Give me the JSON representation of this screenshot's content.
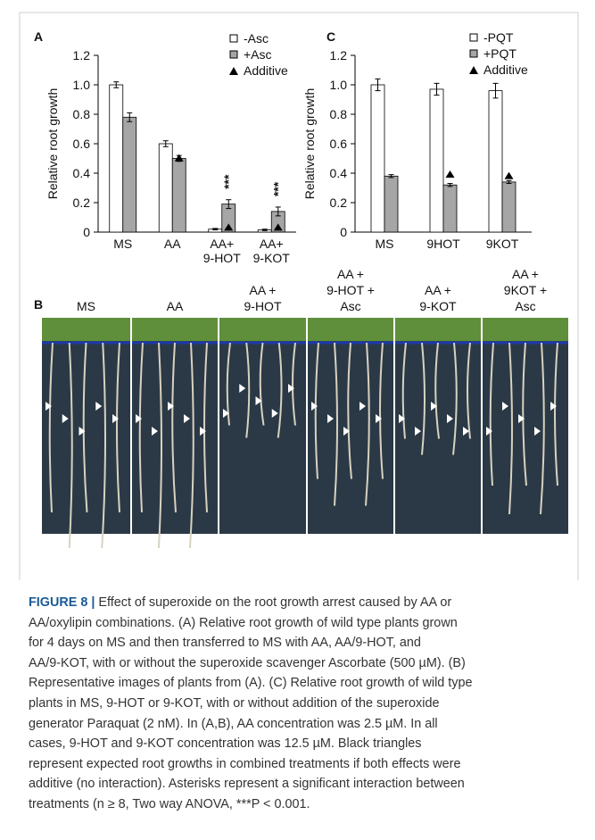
{
  "chart_data": [
    {
      "type": "bar",
      "panel": "A",
      "ylabel": "Relative root growth",
      "categories": [
        [
          "MS"
        ],
        [
          "AA"
        ],
        [
          "AA+",
          "9-HOT"
        ],
        [
          "AA+",
          "9-KOT"
        ]
      ],
      "series": [
        {
          "name": "-Asc",
          "color": "#ffffff",
          "values": [
            1.0,
            0.6,
            0.02,
            0.015
          ],
          "errors": [
            0.02,
            0.02,
            0.005,
            0.005
          ]
        },
        {
          "name": "+Asc",
          "color": "#a6a6a6",
          "values": [
            0.78,
            0.5,
            0.19,
            0.14
          ],
          "errors": [
            0.03,
            0.02,
            0.03,
            0.03
          ]
        },
        {
          "name": "Additive",
          "color": "#000000",
          "marker": "triangle",
          "values": [
            null,
            0.48,
            0.01,
            0.01
          ]
        }
      ],
      "annotations": [
        null,
        null,
        "***",
        "***"
      ],
      "ylim": [
        0,
        1.2
      ],
      "yticks": [
        0,
        0.2,
        0.4,
        0.6,
        0.8,
        {
          "value": 1,
          "label": "1.0"
        },
        1.2
      ]
    },
    {
      "type": "bar",
      "panel": "C",
      "ylabel": "Relative root growth",
      "categories": [
        [
          "MS"
        ],
        [
          "9HOT"
        ],
        [
          "9KOT"
        ]
      ],
      "series": [
        {
          "name": "-PQT",
          "color": "#ffffff",
          "values": [
            1.0,
            0.97,
            0.96
          ],
          "errors": [
            0.04,
            0.04,
            0.05
          ]
        },
        {
          "name": "+PQT",
          "color": "#a6a6a6",
          "values": [
            0.38,
            0.32,
            0.34
          ],
          "errors": [
            0.01,
            0.01,
            0.01
          ]
        },
        {
          "name": "Additive",
          "color": "#000000",
          "marker": "triangle",
          "values": [
            null,
            0.37,
            0.36
          ]
        }
      ],
      "ylim": [
        0,
        1.2
      ],
      "yticks": [
        0,
        0.2,
        0.4,
        0.6,
        0.8,
        {
          "value": 1,
          "label": "1.0"
        },
        1.2
      ]
    }
  ],
  "panel_b": {
    "panel": "B",
    "columns": [
      [
        "MS"
      ],
      [
        "AA"
      ],
      [
        "AA +",
        "9-HOT"
      ],
      [
        "AA +",
        "9-HOT +",
        "Asc"
      ],
      [
        "AA +",
        "9-KOT"
      ],
      [
        "AA +",
        "9KOT +",
        "Asc"
      ]
    ]
  },
  "caption": {
    "label": "FIGURE 8 |",
    "lines": [
      "Effect of superoxide on the root growth arrest caused by AA or",
      "AA/oxylipin combinations. (A) Relative root growth of wild type plants grown",
      "for 4 days on MS and then transferred to MS with AA, AA/9-HOT, and",
      "AA/9-KOT, with or without the superoxide scavenger Ascorbate (500 µM). (B)",
      "Representative images of plants from (A). (C) Relative root growth of wild type",
      "plants in MS, 9-HOT or 9-KOT, with or without addition of the superoxide",
      "generator Paraquat (2 nM). In (A,B), AA concentration was 2.5 µM. In all",
      "cases, 9-HOT and 9-KOT concentration was 12.5 µM. Black triangles",
      "represent expected root growths in combined treatments if both effects were",
      "additive (no interaction). Asterisks represent a significant interaction between",
      "treatments (n ≥ 8, Two way ANOVA, ***P < 0.001."
    ]
  }
}
